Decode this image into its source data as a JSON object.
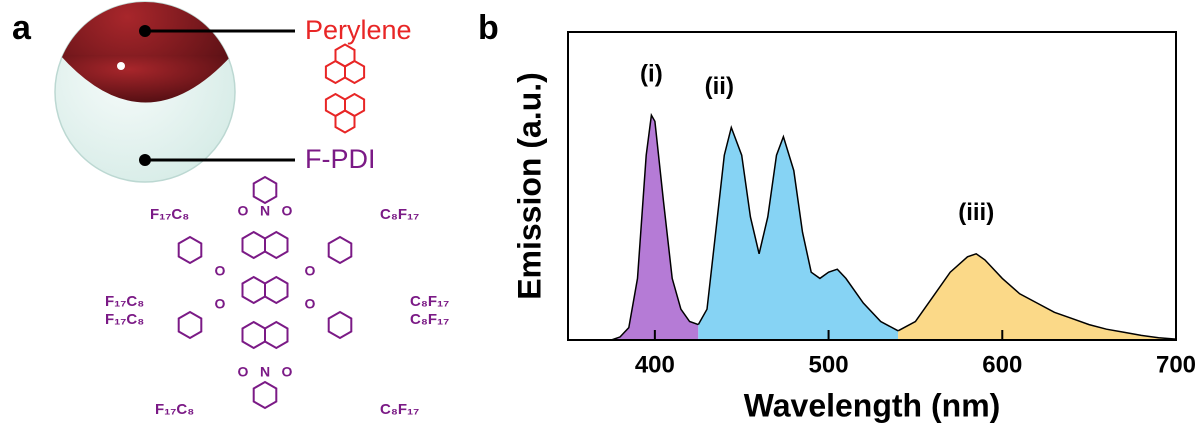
{
  "panel_labels": [
    "a",
    "b"
  ],
  "diagram": {
    "labels": [
      "Perylene",
      "F-PDI"
    ],
    "substituents": [
      "F₁₇C₈",
      "C₈F₁₇",
      "F₁₇C₈",
      "F₁₇C₈",
      "C₈F₁₇",
      "C₈F₁₇",
      "F₁₇C₈",
      "C₈F₁₇"
    ],
    "atoms": [
      "N",
      "O",
      "O",
      "N",
      "O",
      "O",
      "O",
      "O",
      "O",
      "O"
    ]
  },
  "chart_data": {
    "type": "area",
    "xlabel": "Wavelength (nm)",
    "ylabel": "Emission (a.u.)",
    "xlim": [
      350,
      700
    ],
    "xticks": [
      400,
      500,
      600,
      700
    ],
    "ylim": [
      0,
      1
    ],
    "series": [
      {
        "name": "(i)",
        "color": "#b57bd6",
        "x": [
          375,
          380,
          385,
          390,
          395,
          398,
          400,
          405,
          410,
          415,
          420,
          425
        ],
        "values": [
          0,
          0.01,
          0.04,
          0.2,
          0.6,
          0.73,
          0.71,
          0.45,
          0.2,
          0.1,
          0.06,
          0.05
        ]
      },
      {
        "name": "(ii)",
        "color": "#86d3f4",
        "x": [
          425,
          430,
          435,
          440,
          444,
          450,
          455,
          460,
          465,
          470,
          474,
          480,
          485,
          490,
          495,
          500,
          505,
          510,
          520,
          530,
          540
        ],
        "values": [
          0.05,
          0.1,
          0.35,
          0.6,
          0.69,
          0.6,
          0.4,
          0.28,
          0.4,
          0.6,
          0.66,
          0.55,
          0.35,
          0.22,
          0.2,
          0.22,
          0.23,
          0.2,
          0.12,
          0.06,
          0.03
        ]
      },
      {
        "name": "(iii)",
        "color": "#fbd988",
        "x": [
          540,
          550,
          560,
          570,
          580,
          585,
          590,
          600,
          610,
          620,
          630,
          640,
          650,
          660,
          670,
          680,
          690,
          700
        ],
        "values": [
          0.03,
          0.06,
          0.14,
          0.22,
          0.27,
          0.28,
          0.26,
          0.2,
          0.15,
          0.12,
          0.09,
          0.07,
          0.05,
          0.035,
          0.025,
          0.015,
          0.007,
          0.003
        ]
      }
    ]
  }
}
